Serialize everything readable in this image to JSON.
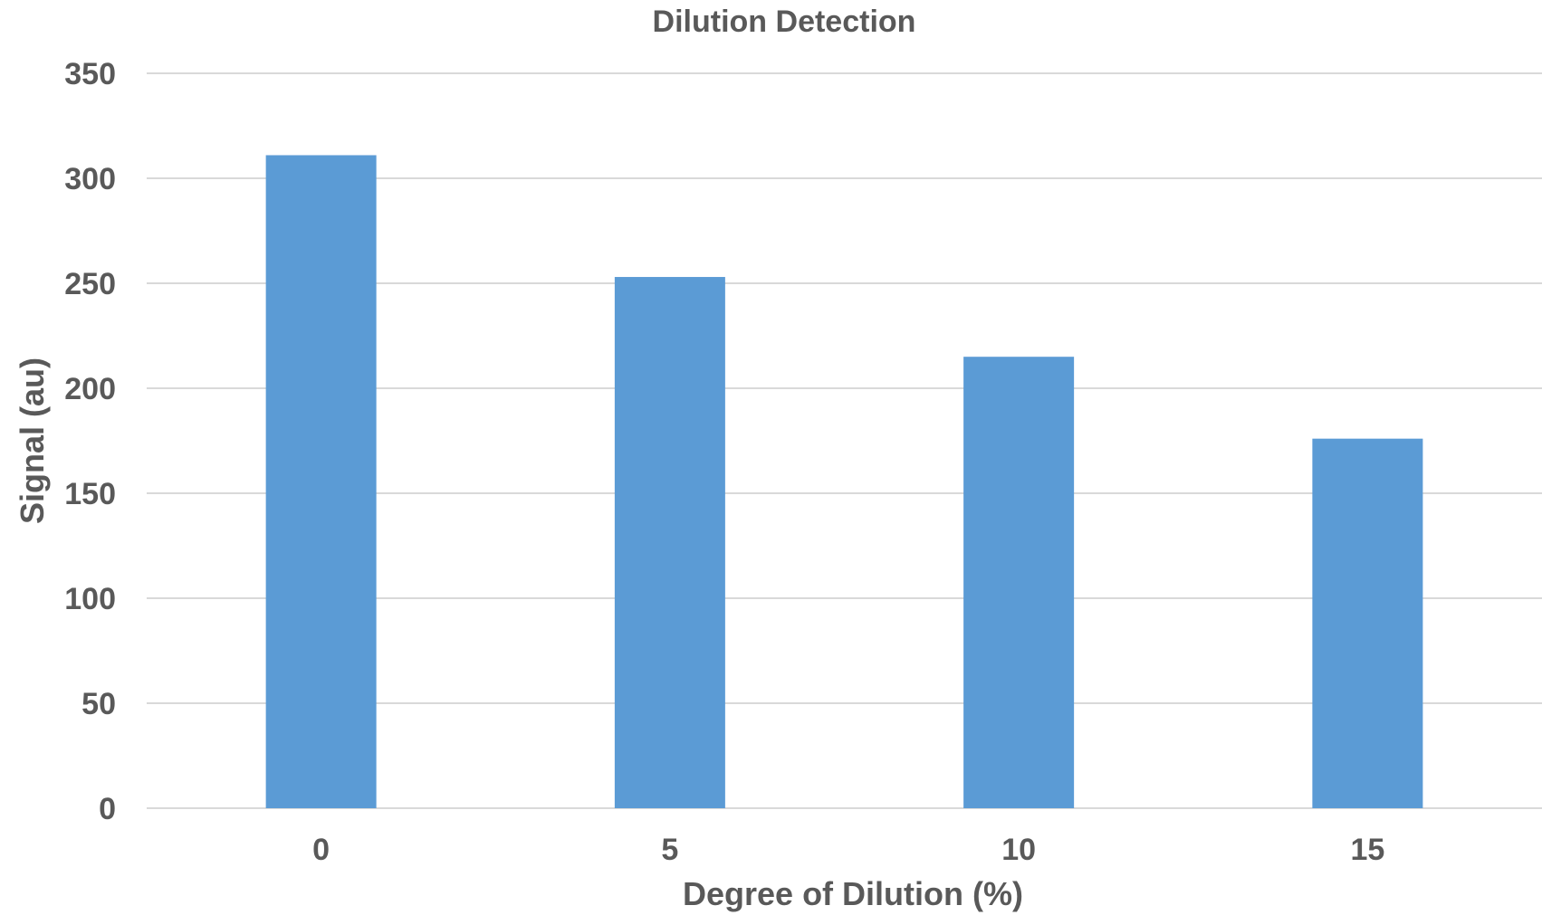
{
  "chart_data": {
    "type": "bar",
    "title": "Dilution Detection",
    "xlabel": "Degree of Dilution (%)",
    "ylabel": "Signal (au)",
    "categories": [
      "0",
      "5",
      "10",
      "15"
    ],
    "series": [
      {
        "values": [
          311,
          253,
          215,
          176
        ],
        "color": "#5b9bd5"
      }
    ],
    "ylim": [
      0,
      350
    ],
    "yticks": [
      0,
      50,
      100,
      150,
      200,
      250,
      300,
      350
    ],
    "grid": true,
    "legend": "none"
  }
}
